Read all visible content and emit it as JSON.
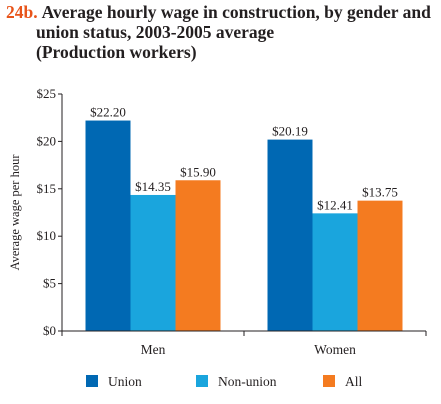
{
  "header": {
    "number": "24b.",
    "title_line1": "Average hourly wage in construction, by gender and",
    "title_line2": "union status, 2003-2005 average",
    "title_line3": "(Production workers)"
  },
  "chart_data": {
    "type": "bar",
    "categories": [
      "Men",
      "Women"
    ],
    "series": [
      {
        "name": "Union",
        "values": [
          22.2,
          20.19
        ],
        "labels": [
          "$22.20",
          "$20.19"
        ],
        "color": "#0068b3"
      },
      {
        "name": "Non-union",
        "values": [
          14.35,
          12.41
        ],
        "labels": [
          "$14.35",
          "$12.41"
        ],
        "color": "#1aa5dd"
      },
      {
        "name": "All",
        "values": [
          15.9,
          13.75
        ],
        "labels": [
          "$15.90",
          "$13.75"
        ],
        "color": "#f47b20"
      }
    ],
    "ylabel": "Average wage per hour",
    "ylim": [
      0,
      25
    ],
    "yticks": [
      0,
      5,
      10,
      15,
      20,
      25
    ],
    "ytick_labels": [
      "$0",
      "$5",
      "$10",
      "$15",
      "$20",
      "$25"
    ],
    "grid": false,
    "legend_position": "bottom"
  }
}
